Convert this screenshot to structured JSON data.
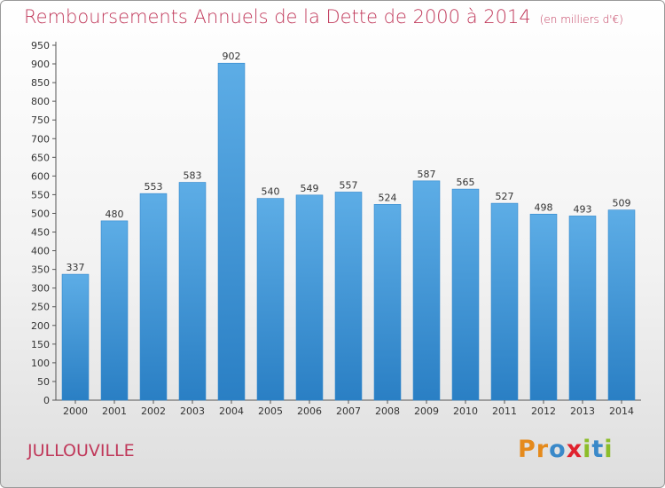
{
  "chart_data": {
    "type": "bar",
    "title": "Remboursements Annuels de la Dette de 2000 à 2014",
    "subtitle": "(en milliers d'€)",
    "xlabel": "",
    "ylabel": "",
    "categories": [
      "2000",
      "2001",
      "2002",
      "2003",
      "2004",
      "2005",
      "2006",
      "2007",
      "2008",
      "2009",
      "2010",
      "2011",
      "2012",
      "2013",
      "2014"
    ],
    "values": [
      337,
      480,
      553,
      583,
      902,
      540,
      549,
      557,
      524,
      587,
      565,
      527,
      498,
      493,
      509
    ],
    "ylim": [
      0,
      950
    ],
    "yticks": [
      0,
      50,
      100,
      150,
      200,
      250,
      300,
      350,
      400,
      450,
      500,
      550,
      600,
      650,
      700,
      750,
      800,
      850,
      900,
      950
    ],
    "grid": false,
    "legend": "none",
    "colors": {
      "bar_light": "#5dade6",
      "bar_dark": "#2a7fc4",
      "title": "#c0385a"
    }
  },
  "footer": {
    "commune": "JULLOUVILLE",
    "logo": [
      "P",
      "r",
      "o",
      "x",
      "i",
      "t",
      "i"
    ],
    "logo_colors": [
      "#e58a1c",
      "#e58a1c",
      "#3a89c9",
      "#e0222e",
      "#8cbd2a",
      "#3a89c9",
      "#8cbd2a"
    ]
  }
}
